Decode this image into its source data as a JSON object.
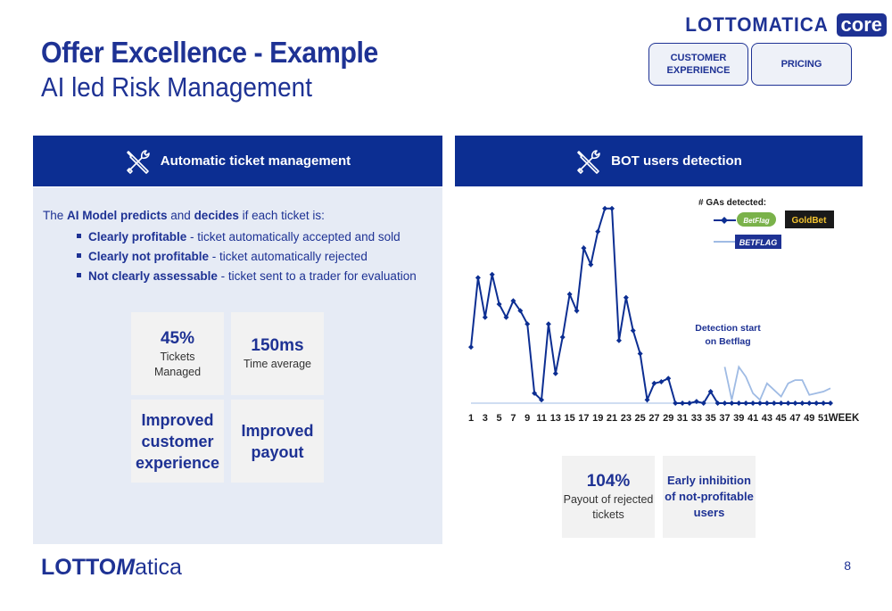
{
  "header": {
    "title": "Offer Excellence - Example",
    "subtitle": "AI led Risk Management",
    "brand_word": "LOTTOMATICA",
    "brand_core": "core"
  },
  "nav": {
    "tabs": [
      {
        "label_line1": "CUSTOMER",
        "label_line2": "EXPERIENCE"
      },
      {
        "label_line1": "PRICING",
        "label_line2": ""
      }
    ]
  },
  "left_panel": {
    "heading": "Automatic ticket management",
    "intro": {
      "prefix": "The ",
      "ai_model": "AI Model predicts",
      "and": " and ",
      "decides": "decides",
      "suffix": " if each ticket is:"
    },
    "bullets": [
      {
        "bold": "Clearly profitable",
        "text": " - ticket automatically accepted and sold"
      },
      {
        "bold": "Clearly not profitable",
        "text": " - ticket automatically rejected"
      },
      {
        "bold": "Not clearly assessable",
        "text": " - ticket sent to a trader for evaluation"
      }
    ],
    "tiles": {
      "t1_big": "45%",
      "t1_line1": "Tickets",
      "t1_line2": "Managed",
      "t2_big": "150ms",
      "t2_line1": "Time average",
      "t3_line1": "Improved",
      "t3_line2": "customer",
      "t3_line3": "experience",
      "t4_line1": "Improved",
      "t4_line2": "payout"
    }
  },
  "right_panel": {
    "heading": "BOT users detection",
    "tiles": {
      "t1_big": "104%",
      "t1_line1": "Payout of rejected",
      "t1_line2": "tickets",
      "t2_line1": "Early inhibition",
      "t2_line2": "of not-profitable",
      "t2_line3": "users"
    }
  },
  "chart_data": {
    "type": "line",
    "legend_title": "# GAs detected:",
    "legend_logos": [
      "BetFlag",
      "GoldBet",
      "BETFLAG"
    ],
    "annotation_line1": "Detection start",
    "annotation_line2": "on Betflag",
    "xlabel": "WEEK",
    "tick_labels": [
      "1",
      "3",
      "5",
      "7",
      "9",
      "11",
      "13",
      "15",
      "17",
      "19",
      "21",
      "23",
      "25",
      "27",
      "29",
      "31",
      "33",
      "35",
      "37",
      "39",
      "41",
      "43",
      "45",
      "47",
      "49",
      "51"
    ],
    "ylim": [
      0,
      60
    ],
    "series": [
      {
        "name": "",
        "color": "#0c2e92",
        "x": [
          1,
          2,
          3,
          4,
          5,
          6,
          7,
          8,
          9,
          10,
          11,
          12,
          13,
          14,
          15,
          16,
          17,
          18,
          19,
          20,
          21,
          22,
          23,
          24,
          25,
          26,
          27,
          28,
          29,
          30,
          31,
          32,
          33,
          34,
          35,
          36,
          37,
          38,
          39,
          40,
          41,
          42,
          43,
          44,
          45,
          46,
          47,
          48,
          49,
          50,
          51,
          52
        ],
        "values": [
          17,
          38,
          26,
          39,
          30,
          26,
          31,
          28,
          24,
          3,
          1,
          24,
          9,
          20,
          33,
          28,
          47,
          42,
          52,
          59,
          59,
          19,
          32,
          22,
          15,
          1,
          6,
          6.5,
          7.5,
          0,
          0,
          0,
          0.5,
          0,
          3.5,
          0,
          0,
          0,
          0,
          0,
          0,
          0,
          0,
          0,
          0,
          0,
          0,
          0,
          0,
          0,
          0,
          0
        ]
      },
      {
        "name": "",
        "color": "#9fbbe4",
        "x": [
          37,
          38,
          39,
          40,
          41,
          42,
          43,
          44,
          45,
          46,
          47,
          48,
          49,
          50,
          51,
          52
        ],
        "values": [
          11,
          1,
          11,
          8,
          3,
          1,
          6,
          4,
          2,
          6,
          7,
          7,
          2.5,
          3,
          3.5,
          4.5
        ]
      }
    ]
  },
  "footer": {
    "logo_part1": "LOTTO",
    "logo_part2": "M",
    "logo_part3": "atica",
    "page_number": "8"
  },
  "colors": {
    "brand": "#1e3294",
    "panel_header": "#0c2e92",
    "panel_bg": "#e6ebf5",
    "tile_bg": "#f2f2f2",
    "line_dark": "#0c2e92",
    "line_light": "#9fbbe4"
  }
}
